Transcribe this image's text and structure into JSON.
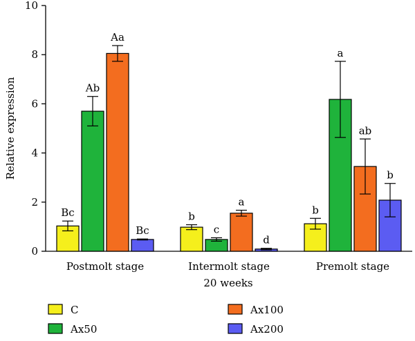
{
  "chart_data": {
    "type": "bar",
    "title": "",
    "xlabel": "20 weeks",
    "ylabel": "Relative expression",
    "ylim": [
      0,
      10
    ],
    "yticks": [
      "0",
      "2",
      "4",
      "6",
      "8",
      "10"
    ],
    "categories": [
      "Postmolt stage",
      "Intermolt stage",
      "Premolt stage"
    ],
    "series": [
      {
        "name": "C",
        "color": "#f5ef1c",
        "values": [
          1.03,
          0.98,
          1.12
        ],
        "errors": [
          0.2,
          0.1,
          0.22
        ],
        "labels": [
          "Bc",
          "b",
          "b"
        ]
      },
      {
        "name": "Ax50",
        "color": "#1fb33b",
        "values": [
          5.7,
          0.48,
          6.18
        ],
        "errors": [
          0.6,
          0.07,
          1.55
        ],
        "labels": [
          "Ab",
          "c",
          "a"
        ]
      },
      {
        "name": "Ax100",
        "color": "#f36d1f",
        "values": [
          8.05,
          1.55,
          3.45
        ],
        "errors": [
          0.32,
          0.12,
          1.12
        ],
        "labels": [
          "Aa",
          "a",
          "ab"
        ]
      },
      {
        "name": "Ax200",
        "color": "#5b5cf2",
        "values": [
          0.48,
          0.09,
          2.08
        ],
        "errors": [
          0.02,
          0.03,
          0.68
        ],
        "labels": [
          "Bc",
          "d",
          "b"
        ]
      }
    ],
    "legend_position": "bottom"
  }
}
